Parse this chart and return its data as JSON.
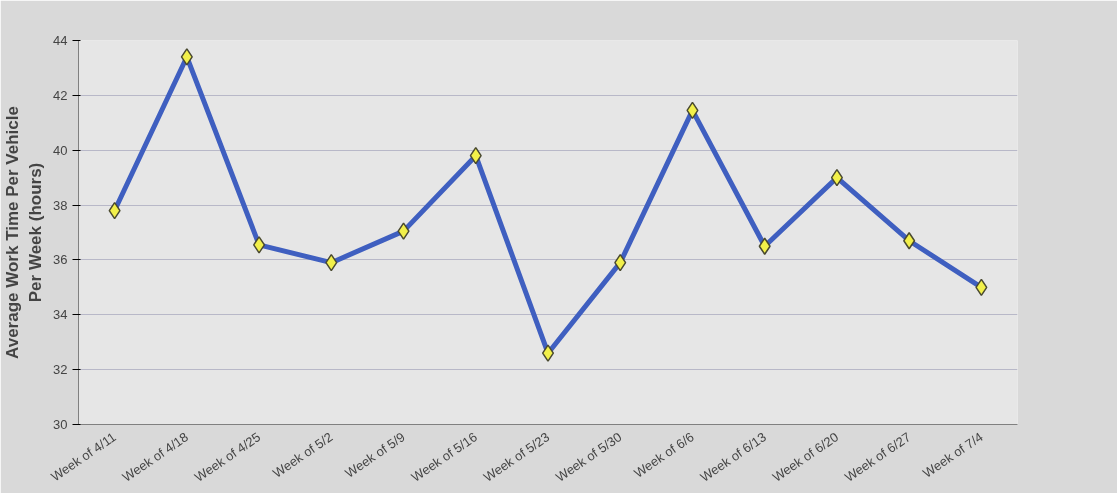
{
  "chart_data": {
    "type": "line",
    "ylabel": "Average Work Time Per Vehicle\nPer Week (hours)",
    "categories": [
      "Week of 4/11",
      "Week of 4/18",
      "Week of 4/25",
      "Week of 5/2",
      "Week of 5/9",
      "Week of 5/16",
      "Week of 5/23",
      "Week of 5/30",
      "Week of 6/6",
      "Week of 6/13",
      "Week of 6/20",
      "Week of 6/27",
      "Week of 7/4"
    ],
    "series": [
      {
        "color": "#3f5fc0",
        "values": [
          37.8,
          43.4,
          36.55,
          35.9,
          37.05,
          39.8,
          32.6,
          35.9,
          41.45,
          36.5,
          39.0,
          36.7,
          35.0
        ]
      }
    ],
    "ylim": [
      30,
      44
    ],
    "yticks": [
      30,
      32,
      34,
      36,
      38,
      40,
      42,
      44
    ],
    "grid": "y",
    "marker": "diamond",
    "line_style": "solid"
  }
}
